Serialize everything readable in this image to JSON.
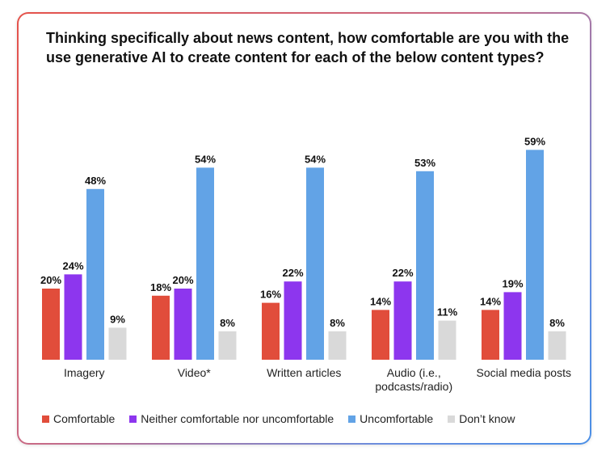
{
  "title": "Thinking specifically about news content, how comfortable are you with the use generative AI to create content for each of the below content types?",
  "colors": {
    "comfortable": "#e14d3b",
    "neither": "#8d36ee",
    "uncomfortable": "#62a3e6",
    "dont_know": "#d9d9d9"
  },
  "legend": [
    {
      "label": "Comfortable",
      "color": "#e14d3b"
    },
    {
      "label": "Neither comfortable nor uncomfortable",
      "color": "#8d36ee"
    },
    {
      "label": "Uncomfortable",
      "color": "#62a3e6"
    },
    {
      "label": "Don’t know",
      "color": "#d9d9d9"
    }
  ],
  "chart_data": {
    "type": "bar",
    "title": "Thinking specifically about news content, how comfortable are you with the use generative AI to create content for each of the below content types?",
    "xlabel": "",
    "ylabel": "",
    "ylim": [
      0,
      60
    ],
    "unit": "%",
    "categories": [
      [
        "Imagery"
      ],
      [
        "Video*"
      ],
      [
        "Written articles"
      ],
      [
        "Audio (i.e.,",
        "podcasts/radio)"
      ],
      [
        "Social media posts"
      ]
    ],
    "series": [
      {
        "name": "Comfortable",
        "color": "#e14d3b",
        "values": [
          20,
          18,
          16,
          14,
          14
        ]
      },
      {
        "name": "Neither comfortable nor uncomfortable",
        "color": "#8d36ee",
        "values": [
          24,
          20,
          22,
          22,
          19
        ]
      },
      {
        "name": "Uncomfortable",
        "color": "#62a3e6",
        "values": [
          48,
          54,
          54,
          53,
          59
        ]
      },
      {
        "name": "Don’t know",
        "color": "#d9d9d9",
        "values": [
          9,
          8,
          8,
          11,
          8
        ]
      }
    ]
  }
}
